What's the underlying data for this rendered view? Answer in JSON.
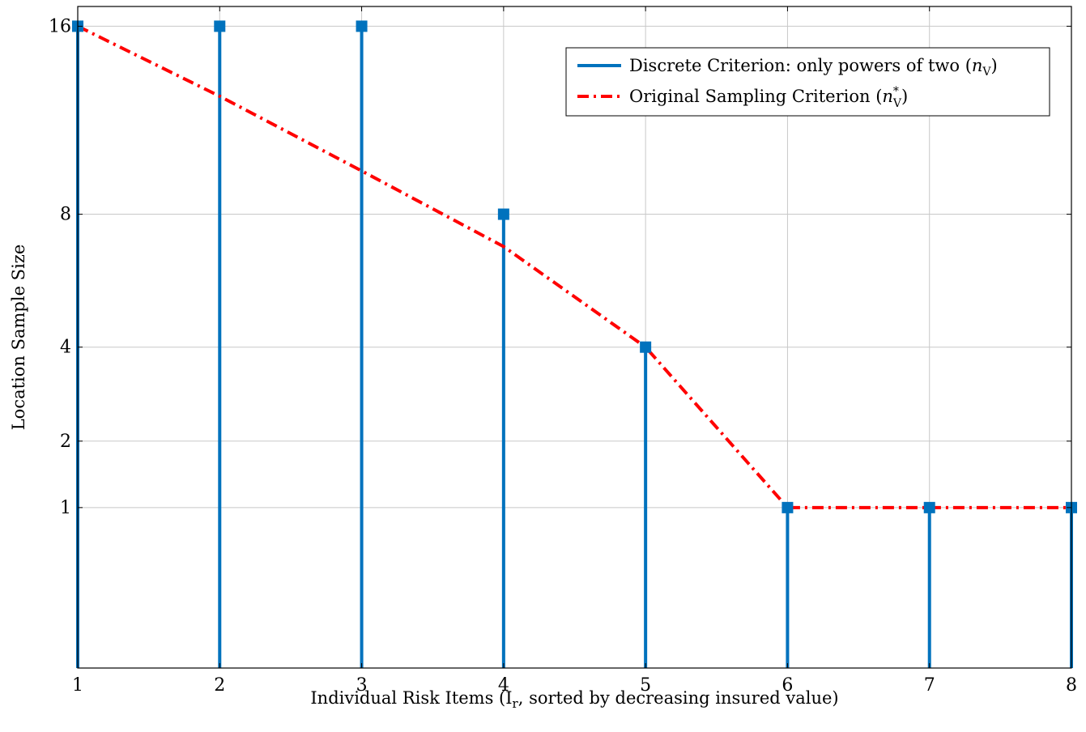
{
  "chart_data": {
    "type": "line",
    "title": "",
    "xlabel": "Individual Risk Items (I_r, sorted by decreasing insured value)",
    "xlabel_parts": {
      "before": "Individual Risk Items (I",
      "sub": "r",
      "after": ", sorted by decreasing insured value)"
    },
    "ylabel": "Location Sample Size",
    "x": [
      1,
      2,
      3,
      4,
      5,
      6,
      7,
      8
    ],
    "xlim": [
      1,
      8
    ],
    "ylim": [
      0,
      17
    ],
    "xticks": [
      "1",
      "2",
      "3",
      "4",
      "5",
      "6",
      "7",
      "8"
    ],
    "yticks": [
      {
        "value": 1,
        "label": "1"
      },
      {
        "value": 2,
        "label": "2"
      },
      {
        "value": 4,
        "label": "4"
      },
      {
        "value": 8,
        "label": "8"
      },
      {
        "value": 16,
        "label": "16"
      }
    ],
    "y_scale": "sqrt",
    "grid": true,
    "legend_position": "top-right",
    "series": [
      {
        "name": "Discrete Criterion: only powers of two (n_V)",
        "legend_before": "Discrete Criterion: only powers of two (",
        "legend_math": "n",
        "legend_sub": "V",
        "legend_sup": "",
        "legend_after": ")",
        "style": "stem",
        "marker": "square",
        "color": "#0072bd",
        "values": [
          16,
          16,
          16,
          8,
          4,
          1,
          1,
          1
        ]
      },
      {
        "name": "Original Sampling Criterion (n*_V)",
        "legend_before": "Original Sampling Criterion (",
        "legend_math": "n",
        "legend_sub": "V",
        "legend_sup": "*",
        "legend_after": ")",
        "style": "dashdot",
        "marker": "none",
        "color": "#ff0000",
        "values": [
          16,
          12.7,
          9.6,
          6.9,
          4,
          1,
          1,
          1
        ]
      }
    ]
  }
}
